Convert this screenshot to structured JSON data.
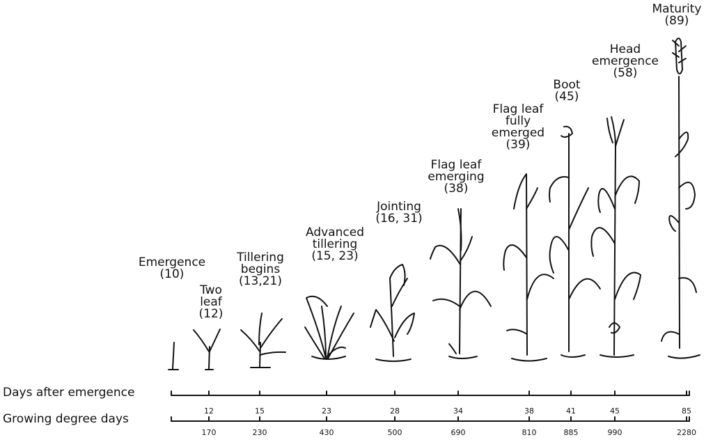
{
  "stages": [
    {
      "lines": [
        "Emergence",
        "(10)"
      ]
    },
    {
      "lines": [
        "Two",
        "leaf",
        "(12)"
      ]
    },
    {
      "lines": [
        "Tillering",
        "begins",
        "(13,21)"
      ]
    },
    {
      "lines": [
        "Advanced",
        "tillering",
        "(15, 23)"
      ]
    },
    {
      "lines": [
        "Jointing",
        "(16, 31)"
      ]
    },
    {
      "lines": [
        "Flag leaf",
        "emerging",
        "(38)"
      ]
    },
    {
      "lines": [
        "Flag leaf",
        "fully",
        "emerged",
        "(39)"
      ]
    },
    {
      "lines": [
        "Boot",
        "(45)"
      ]
    },
    {
      "lines": [
        "Head",
        "emergence",
        "(58)"
      ]
    },
    {
      "lines": [
        "Maturity",
        "(89)"
      ]
    }
  ],
  "axes": {
    "days": {
      "title": "Days after emergence",
      "ticks": [
        "12",
        "15",
        "23",
        "28",
        "34",
        "38",
        "41",
        "45",
        "85"
      ]
    },
    "gdd": {
      "title": "Growing degree days",
      "ticks": [
        "170",
        "230",
        "430",
        "500",
        "690",
        "810",
        "885",
        "990",
        "2280"
      ]
    }
  },
  "colors": {
    "ink": "#111111",
    "background": "#ffffff"
  }
}
